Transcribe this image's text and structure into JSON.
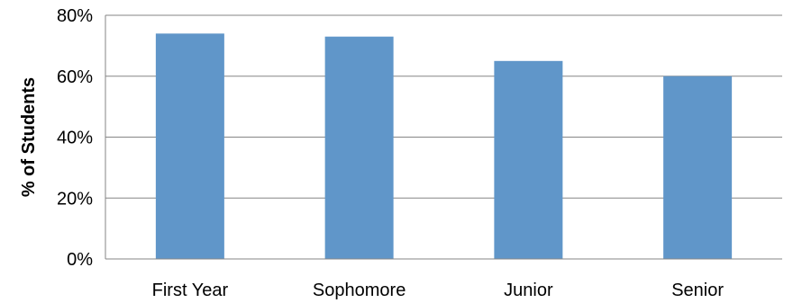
{
  "chart_data": {
    "type": "bar",
    "title": "",
    "xlabel": "",
    "ylabel": "% of Students",
    "categories": [
      "First Year",
      "Sophomore",
      "Junior",
      "Senior"
    ],
    "values": [
      74,
      73,
      65,
      60
    ],
    "ylim": [
      0,
      80
    ],
    "yticks": [
      0,
      20,
      40,
      60,
      80
    ],
    "ytick_labels": [
      "0%",
      "20%",
      "40%",
      "60%",
      "80%"
    ],
    "grid": true,
    "legend": "none",
    "bar_color": "#6096c9"
  }
}
